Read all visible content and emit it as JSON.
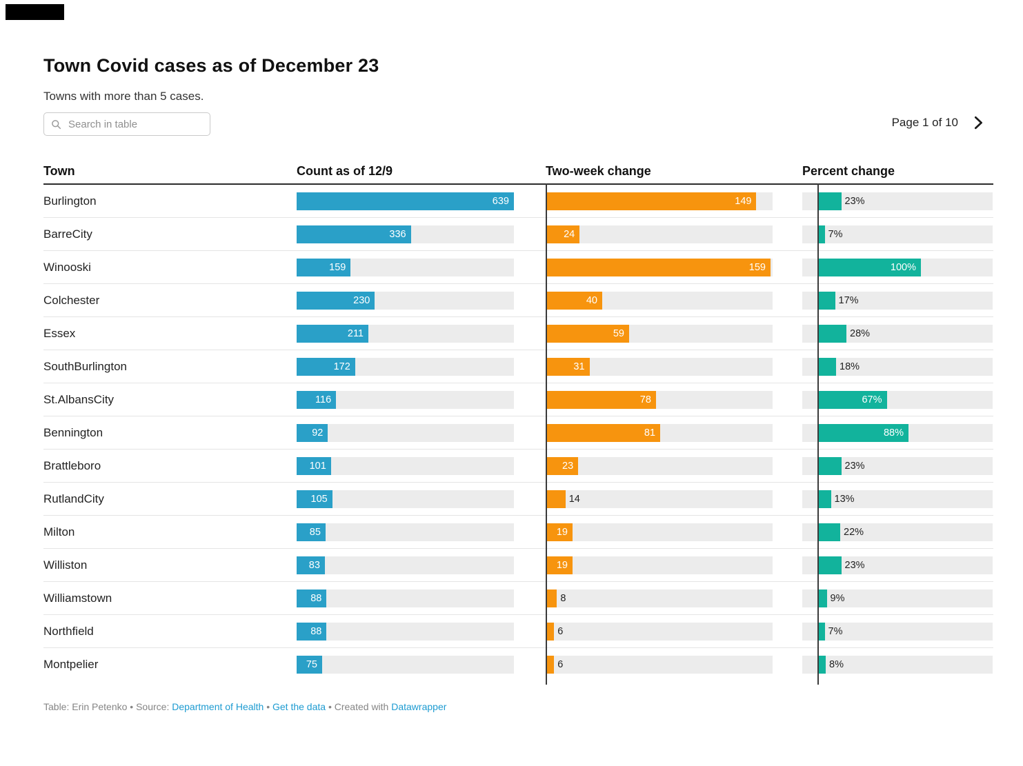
{
  "page": {
    "title": "Town Covid cases as of December 23",
    "subtitle": "Towns with more than 5 cases.",
    "search_placeholder": "Search in table",
    "pagination_label": "Page 1 of 10"
  },
  "colors": {
    "count_bar": "#2aa0c8",
    "change_bar": "#f7940e",
    "percent_bar": "#12b39c",
    "bar_track": "#ececec",
    "axis_line": "#3a3a3a",
    "link": "#1d9bd1"
  },
  "chart_data": {
    "type": "table",
    "title": "Town Covid cases as of December 23",
    "subtitle": "Towns with more than 5 cases.",
    "columns": [
      "Town",
      "Count as of 12/9",
      "Two-week change",
      "Percent change"
    ],
    "bar_columns": {
      "count": {
        "min": 0,
        "max": 639
      },
      "change": {
        "min": 0,
        "max": 159
      },
      "percent": {
        "min": 0,
        "max": 100,
        "unit": "%"
      }
    },
    "rows": [
      {
        "town": "Burlington",
        "count": 639,
        "change": 149,
        "percent": 23,
        "percent_label": "23%"
      },
      {
        "town": "BarreCity",
        "count": 336,
        "change": 24,
        "percent": 7,
        "percent_label": "7%"
      },
      {
        "town": "Winooski",
        "count": 159,
        "change": 159,
        "percent": 100,
        "percent_label": "100%"
      },
      {
        "town": "Colchester",
        "count": 230,
        "change": 40,
        "percent": 17,
        "percent_label": "17%"
      },
      {
        "town": "Essex",
        "count": 211,
        "change": 59,
        "percent": 28,
        "percent_label": "28%"
      },
      {
        "town": "SouthBurlington",
        "count": 172,
        "change": 31,
        "percent": 18,
        "percent_label": "18%"
      },
      {
        "town": "St.AlbansCity",
        "count": 116,
        "change": 78,
        "percent": 67,
        "percent_label": "67%"
      },
      {
        "town": "Bennington",
        "count": 92,
        "change": 81,
        "percent": 88,
        "percent_label": "88%"
      },
      {
        "town": "Brattleboro",
        "count": 101,
        "change": 23,
        "percent": 23,
        "percent_label": "23%"
      },
      {
        "town": "RutlandCity",
        "count": 105,
        "change": 14,
        "percent": 13,
        "percent_label": "13%"
      },
      {
        "town": "Milton",
        "count": 85,
        "change": 19,
        "percent": 22,
        "percent_label": "22%"
      },
      {
        "town": "Williston",
        "count": 83,
        "change": 19,
        "percent": 23,
        "percent_label": "23%"
      },
      {
        "town": "Williamstown",
        "count": 88,
        "change": 8,
        "percent": 9,
        "percent_label": "9%"
      },
      {
        "town": "Northfield",
        "count": 88,
        "change": 6,
        "percent": 7,
        "percent_label": "7%"
      },
      {
        "town": "Montpelier",
        "count": 75,
        "change": 6,
        "percent": 8,
        "percent_label": "8%"
      }
    ]
  },
  "footer": {
    "prefix": "Table: Erin Petenko • Source: ",
    "source_link": "Department of Health",
    "sep1": " • ",
    "data_link": "Get the data",
    "sep2": " • Created with ",
    "tool_link": "Datawrapper"
  }
}
